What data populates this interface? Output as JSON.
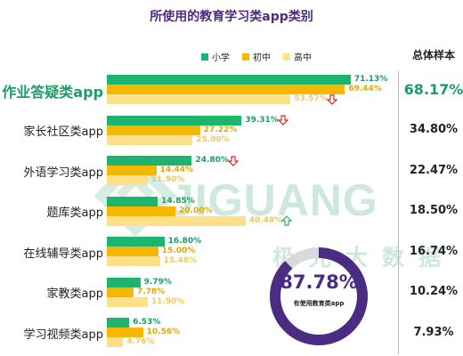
{
  "title": "所使用的教育学习类app类别",
  "legend": [
    {
      "name": "小学",
      "color": "#1db56e"
    },
    {
      "name": "初中",
      "color": "#f5b800"
    },
    {
      "name": "高中",
      "color": "#ffe08a"
    }
  ],
  "sample_header": "总体样本",
  "watermark": {
    "brand": "JIGUANG",
    "sub": "极光大数据"
  },
  "donut": {
    "value": 87.78,
    "value_text": "87.78%",
    "label": "有使用教育类app"
  },
  "chart_data": {
    "type": "bar",
    "orientation": "horizontal",
    "title": "所使用的教育学习类app类别",
    "xlabel": "",
    "ylabel": "",
    "xlim": [
      0,
      75
    ],
    "categories": [
      "作业答疑类app",
      "家长社区类app",
      "外语学习类app",
      "题库类app",
      "在线辅导类app",
      "家教类app",
      "学习视频类app"
    ],
    "highlight_category": "作业答疑类app",
    "series": [
      {
        "name": "小学",
        "values": [
          71.13,
          39.31,
          24.8,
          14.85,
          16.8,
          9.79,
          6.53
        ],
        "labels": [
          "71.13%",
          "39.31%",
          "24.80%",
          "14.85%",
          "16.80%",
          "9.79%",
          "6.53%"
        ],
        "color": "#1db56e",
        "label_color": "#1a9e66"
      },
      {
        "name": "初中",
        "values": [
          69.44,
          27.22,
          14.44,
          20.0,
          15.0,
          7.78,
          10.56
        ],
        "labels": [
          "69.44%",
          "27.22%",
          "14.44%",
          "20.00%",
          "15.00%",
          "7.78%",
          "10.56%"
        ],
        "color": "#f5b800",
        "label_color": "#e0a800"
      },
      {
        "name": "高中",
        "values": [
          53.57,
          25.0,
          11.9,
          40.48,
          15.48,
          11.9,
          4.76
        ],
        "labels": [
          "53.57%",
          "25.00%",
          "11.90%",
          "40.48%",
          "15.48%",
          "11.90%",
          "4.76%"
        ],
        "color": "#ffe08a",
        "label_color": "#f0c860"
      }
    ],
    "trend_arrows": [
      "down",
      "down",
      "down",
      "up",
      null,
      null,
      null
    ],
    "arrow_colors": {
      "down": "#d9262b",
      "up": "#1db56e"
    },
    "overall_sample": [
      "68.17%",
      "34.80%",
      "22.47%",
      "18.50%",
      "16.74%",
      "10.24%",
      "7.93%"
    ]
  }
}
